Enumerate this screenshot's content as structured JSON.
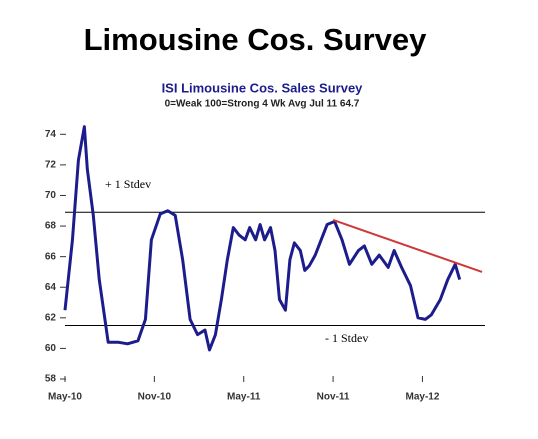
{
  "chart_data": {
    "type": "line",
    "title": "Limousine Cos. Survey",
    "subtitle": "ISI Limousine Cos. Sales Survey",
    "subtitle2": "0=Weak 100=Strong 4 Wk Avg Jul 11 64.7",
    "x": [
      0,
      0.5,
      0.9,
      1.3,
      1.5,
      1.9,
      2.3,
      2.9,
      3.6,
      4.2,
      4.9,
      5.4,
      5.8,
      6.4,
      6.9,
      7.4,
      7.9,
      8.4,
      8.9,
      9.4,
      9.7,
      10.1,
      10.5,
      10.9,
      11.3,
      11.7,
      12.1,
      12.4,
      12.8,
      13.1,
      13.4,
      13.8,
      14.1,
      14.4,
      14.8,
      15.1,
      15.4,
      15.8,
      16.1,
      16.4,
      16.8,
      17.2,
      17.6,
      18.1,
      18.6,
      19.1,
      19.7,
      20.1,
      20.6,
      21.1,
      21.7,
      22.1,
      22.6,
      23.2,
      23.7,
      24.2,
      24.6,
      25.2,
      25.7,
      26.2,
      26.5
    ],
    "series": [
      {
        "name": "ISI Limousine Cos. Sales Survey",
        "color": "#1c1c8c",
        "values": [
          62.5,
          67.1,
          72.3,
          74.5,
          71.7,
          68.7,
          64.5,
          60.4,
          60.4,
          60.3,
          60.5,
          61.9,
          67.1,
          68.8,
          69.0,
          68.7,
          65.8,
          61.9,
          60.9,
          61.2,
          59.9,
          60.9,
          63.2,
          65.8,
          67.9,
          67.4,
          67.1,
          67.9,
          67.1,
          68.1,
          67.1,
          67.9,
          66.4,
          63.2,
          62.5,
          65.8,
          66.9,
          66.4,
          65.1,
          65.4,
          66.1,
          67.1,
          68.1,
          68.3,
          67.1,
          65.5,
          66.4,
          66.7,
          65.5,
          66.1,
          65.3,
          66.4,
          65.3,
          64.1,
          62.0,
          61.9,
          62.2,
          63.2,
          64.5,
          65.5,
          64.5
        ]
      }
    ],
    "xlim": [
      0,
      28.2
    ],
    "xticks": [
      {
        "value": 0,
        "label": "May-10"
      },
      {
        "value": 6,
        "label": "Nov-10"
      },
      {
        "value": 12,
        "label": "May-11"
      },
      {
        "value": 18,
        "label": "Nov-11"
      },
      {
        "value": 24,
        "label": "May-12"
      }
    ],
    "ylim": [
      58,
      75
    ],
    "yticks": [
      58,
      60,
      62,
      64,
      66,
      68,
      70,
      72,
      74
    ],
    "reference_lines": [
      {
        "label": "+ 1 Stdev",
        "value": 68.9
      },
      {
        "label": "- 1 Stdev",
        "value": 61.5
      }
    ],
    "trend_line": {
      "x": [
        18,
        28
      ],
      "y": [
        68.4,
        65.0
      ],
      "color": "#d03838"
    }
  }
}
